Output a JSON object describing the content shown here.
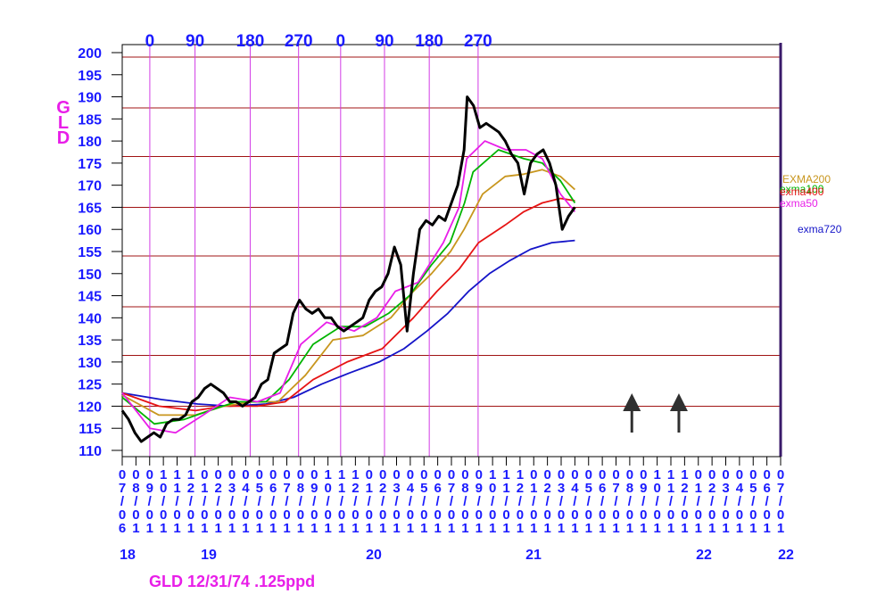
{
  "chart_data": {
    "type": "line",
    "title": "GLD 12/31/74  .125ppd",
    "ylabel": "GLD",
    "ylim": [
      110,
      200
    ],
    "y_ticks": [
      110,
      115,
      120,
      125,
      130,
      135,
      140,
      145,
      150,
      155,
      160,
      165,
      170,
      175,
      180,
      185,
      190,
      195,
      200
    ],
    "grid": true,
    "cycle_labels": [
      "0",
      "90",
      "180",
      "270",
      "0",
      "90",
      "180",
      "270"
    ],
    "cycle_x": [
      "2018-09-05",
      "2018-12-14",
      "2019-04-15",
      "2019-07-31",
      "2019-11-01",
      "2020-02-06",
      "2020-05-15",
      "2020-08-31"
    ],
    "month_labels": [
      "07/06",
      "08/01",
      "09/01",
      "10/01",
      "11/01",
      "12/01",
      "01/01",
      "02/01",
      "03/01",
      "04/01",
      "05/01",
      "06/01",
      "07/01",
      "08/01",
      "09/01",
      "10/01",
      "11/01",
      "12/01",
      "01/01",
      "02/01",
      "03/01",
      "04/01",
      "05/01",
      "06/01",
      "07/01",
      "08/01",
      "09/01",
      "10/01",
      "11/01",
      "12/01",
      "01/01",
      "02/01",
      "03/01",
      "04/01",
      "05/01",
      "06/01",
      "07/01",
      "08/01",
      "09/01",
      "10/01",
      "11/01",
      "12/01",
      "01/01",
      "02/01",
      "03/01",
      "04/01",
      "05/01",
      "06/01",
      "07/01"
    ],
    "year_labels": [
      "18",
      "19",
      "20",
      "21",
      "22",
      "22"
    ],
    "hlines": [
      120,
      131.5,
      142.5,
      154,
      165,
      176.5,
      187.5,
      199
    ],
    "arrows_x": [
      "2021-08-06",
      "2021-11-18"
    ],
    "series": [
      {
        "name": "GLD",
        "color": "#000000",
        "x": [
          "2018-07-06",
          "2018-07-20",
          "2018-08-03",
          "2018-08-17",
          "2018-08-31",
          "2018-09-14",
          "2018-09-28",
          "2018-10-12",
          "2018-10-26",
          "2018-11-09",
          "2018-11-23",
          "2018-12-07",
          "2018-12-21",
          "2019-01-04",
          "2019-01-18",
          "2019-02-01",
          "2019-02-15",
          "2019-03-01",
          "2019-03-15",
          "2019-03-29",
          "2019-04-12",
          "2019-04-26",
          "2019-05-10",
          "2019-05-24",
          "2019-06-07",
          "2019-06-21",
          "2019-07-05",
          "2019-07-19",
          "2019-08-02",
          "2019-08-16",
          "2019-08-30",
          "2019-09-13",
          "2019-09-27",
          "2019-10-11",
          "2019-10-25",
          "2019-11-08",
          "2019-11-22",
          "2019-12-06",
          "2019-12-20",
          "2020-01-03",
          "2020-01-17",
          "2020-01-31",
          "2020-02-14",
          "2020-02-28",
          "2020-03-13",
          "2020-03-27",
          "2020-04-10",
          "2020-04-24",
          "2020-05-08",
          "2020-05-22",
          "2020-06-05",
          "2020-06-19",
          "2020-07-03",
          "2020-07-17",
          "2020-07-31",
          "2020-08-07",
          "2020-08-21",
          "2020-09-04",
          "2020-09-18",
          "2020-10-02",
          "2020-10-16",
          "2020-10-30",
          "2020-11-13",
          "2020-11-27",
          "2020-12-11",
          "2020-12-25",
          "2021-01-08",
          "2021-01-22",
          "2021-02-05",
          "2021-02-19",
          "2021-03-05",
          "2021-03-19",
          "2021-04-02"
        ],
        "y": [
          119,
          117,
          114,
          112,
          113,
          114,
          113,
          116,
          117,
          117,
          118,
          121,
          122,
          124,
          125,
          124,
          123,
          121,
          121,
          120,
          121,
          122,
          125,
          126,
          132,
          133,
          134,
          141,
          144,
          142,
          141,
          142,
          140,
          140,
          138,
          137,
          138,
          139,
          140,
          144,
          146,
          147,
          150,
          156,
          152,
          137,
          150,
          160,
          162,
          161,
          163,
          162,
          166,
          170,
          178,
          190,
          188,
          183,
          184,
          183,
          182,
          180,
          177,
          175,
          168,
          175,
          177,
          178,
          175,
          170,
          160,
          163,
          165
        ]
      },
      {
        "name": "exma50",
        "color": "#e81ee8",
        "x": [
          "2018-07-06",
          "2018-09-05",
          "2018-11-01",
          "2019-01-01",
          "2019-03-01",
          "2019-05-01",
          "2019-06-20",
          "2019-08-05",
          "2019-10-01",
          "2019-12-01",
          "2020-01-20",
          "2020-03-01",
          "2020-04-20",
          "2020-06-15",
          "2020-07-20",
          "2020-08-06",
          "2020-09-15",
          "2020-11-01",
          "2020-12-15",
          "2021-01-20",
          "2021-03-01",
          "2021-04-02"
        ],
        "y": [
          123,
          115,
          114,
          118,
          122,
          121,
          123,
          134,
          139,
          137,
          140,
          146,
          148,
          157,
          165,
          176,
          180,
          178,
          178,
          176,
          168,
          164
        ]
      },
      {
        "name": "exma100",
        "color": "#00b400",
        "x": [
          "2018-07-06",
          "2018-09-15",
          "2018-11-20",
          "2019-01-15",
          "2019-03-15",
          "2019-05-20",
          "2019-07-10",
          "2019-09-01",
          "2019-11-01",
          "2019-12-25",
          "2020-02-15",
          "2020-04-01",
          "2020-05-20",
          "2020-06-30",
          "2020-08-01",
          "2020-08-20",
          "2020-10-15",
          "2020-12-10",
          "2021-01-20",
          "2021-03-01",
          "2021-04-02"
        ],
        "y": [
          122,
          116,
          117,
          119,
          121,
          121,
          126,
          134,
          138,
          138,
          141,
          145,
          152,
          157,
          166,
          173,
          178,
          176,
          175,
          171,
          166
        ]
      },
      {
        "name": "EXMA200",
        "color": "#c8961e",
        "x": [
          "2018-07-06",
          "2018-09-25",
          "2018-12-15",
          "2019-02-15",
          "2019-04-20",
          "2019-06-15",
          "2019-08-15",
          "2019-10-15",
          "2019-12-20",
          "2020-02-20",
          "2020-04-10",
          "2020-05-20",
          "2020-07-01",
          "2020-07-31",
          "2020-09-10",
          "2020-10-30",
          "2020-12-10",
          "2021-01-20",
          "2021-03-01",
          "2021-04-02"
        ],
        "y": [
          122.5,
          118,
          118,
          120,
          121,
          121,
          127,
          135,
          136,
          140,
          146,
          150,
          155,
          160,
          168,
          172,
          172.5,
          173.5,
          172,
          169
        ]
      },
      {
        "name": "exma400",
        "color": "#e61414",
        "x": [
          "2018-07-06",
          "2018-09-25",
          "2018-12-15",
          "2019-02-15",
          "2019-05-01",
          "2019-07-01",
          "2019-09-01",
          "2019-11-15",
          "2020-02-01",
          "2020-04-10",
          "2020-06-01",
          "2020-07-20",
          "2020-09-01",
          "2020-10-30",
          "2020-12-10",
          "2021-01-20",
          "2021-03-01",
          "2021-04-02"
        ],
        "y": [
          123,
          120,
          119,
          120,
          120,
          121,
          126,
          130,
          133,
          140,
          146,
          151,
          157,
          161,
          164,
          166,
          167,
          166.5
        ]
      },
      {
        "name": "exma720",
        "color": "#1414c8",
        "x": [
          "2018-07-06",
          "2018-10-01",
          "2018-12-20",
          "2019-03-01",
          "2019-05-20",
          "2019-07-20",
          "2019-09-20",
          "2019-11-20",
          "2020-01-25",
          "2020-03-20",
          "2020-05-10",
          "2020-06-25",
          "2020-08-10",
          "2020-09-25",
          "2020-11-10",
          "2020-12-25",
          "2021-02-10",
          "2021-04-02"
        ],
        "y": [
          123,
          121.5,
          120.5,
          120,
          120.5,
          122,
          125,
          127.5,
          130,
          133,
          137,
          141,
          146,
          150,
          153,
          155.5,
          157,
          157.5
        ]
      }
    ],
    "legend": [
      {
        "label": "EXMA200",
        "color": "#c8961e"
      },
      {
        "label": "exma100",
        "color": "#00b400"
      },
      {
        "label": "exma400",
        "color": "#e61414"
      },
      {
        "label": "exma50",
        "color": "#e81ee8"
      },
      {
        "label": "exma720",
        "color": "#1414c8"
      }
    ]
  }
}
